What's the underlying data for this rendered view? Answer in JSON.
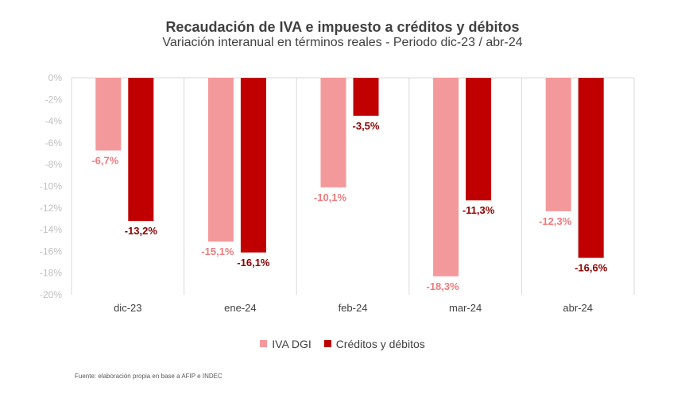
{
  "colors": {
    "iva": "#f4999b",
    "creditos": "#c00000",
    "grid": "#d9d9d9",
    "iva_label": "#ef7b7e",
    "creditos_label": "#8b0000"
  },
  "chart_data": {
    "type": "bar",
    "title": "Recaudación de IVA e impuesto a créditos y débitos",
    "subtitle": "Variación interanual en términos reales - Periodo dic-23 / abr-24",
    "categories": [
      "dic-23",
      "ene-24",
      "feb-24",
      "mar-24",
      "abr-24"
    ],
    "series": [
      {
        "name": "IVA DGI",
        "values": [
          -6.7,
          -15.1,
          -10.1,
          -18.3,
          -12.3
        ],
        "labels": [
          "-6,7%",
          "-15,1%",
          "-10,1%",
          "-18,3%",
          "-12,3%"
        ]
      },
      {
        "name": "Créditos y débitos",
        "values": [
          -13.2,
          -16.1,
          -3.5,
          -11.3,
          -16.6
        ],
        "labels": [
          "-13,2%",
          "-16,1%",
          "-3,5%",
          "-11,3%",
          "-16,6%"
        ]
      }
    ],
    "ylim": [
      -20,
      0
    ],
    "yticks": [
      "0%",
      "-2%",
      "-4%",
      "-6%",
      "-8%",
      "-10%",
      "-12%",
      "-14%",
      "-16%",
      "-18%",
      "-20%"
    ],
    "grid": "vertical category separators",
    "legend_position": "bottom"
  },
  "source": "Fuente: elaboración propia en base a AFIP e INDEC"
}
